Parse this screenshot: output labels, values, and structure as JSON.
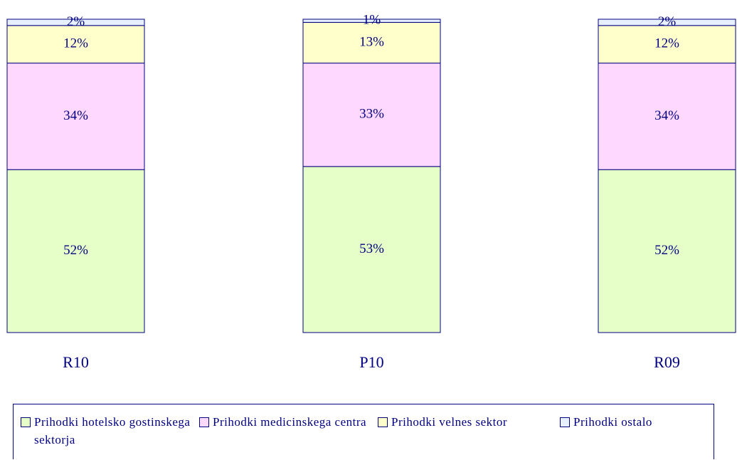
{
  "chart_data": {
    "type": "bar",
    "stacked": true,
    "categories": [
      "R10",
      "P10",
      "R09"
    ],
    "series": [
      {
        "name": "Prihodki hotelsko gostinskega sektorja",
        "color": "#e6ffc8",
        "values": [
          52,
          53,
          52
        ],
        "value_labels": [
          "52%",
          "53%",
          "52%"
        ]
      },
      {
        "name": "Prihodki medicinskega centra",
        "color": "#ffd8ff",
        "values": [
          34,
          33,
          34
        ],
        "value_labels": [
          "34%",
          "33%",
          "34%"
        ]
      },
      {
        "name": "Prihodki velnes sektor",
        "color": "#ffffcc",
        "values": [
          12,
          13,
          12
        ],
        "value_labels": [
          "12%",
          "13%",
          "12%"
        ]
      },
      {
        "name": "Prihodki ostalo",
        "color": "#e6f0ff",
        "values": [
          2,
          1,
          2
        ],
        "value_labels": [
          "2%",
          "1%",
          "2%"
        ]
      }
    ],
    "legend": "bottom"
  }
}
